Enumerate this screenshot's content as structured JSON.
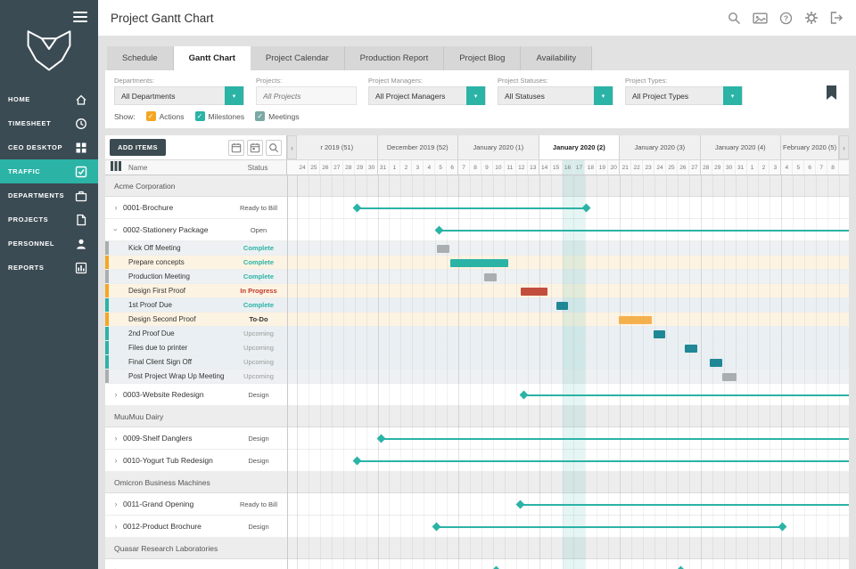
{
  "colors": {
    "sidebar_bg": "#3b4b53",
    "accent_teal": "#2bb3a6",
    "action_orange": "#f5a623",
    "meeting_gray": "#a9aeb0",
    "milestone_teal": "#1f8796",
    "inprogress_red": "#c24e3d",
    "todo_orange": "#f5b04e"
  },
  "sidebar": {
    "items": [
      {
        "id": "home",
        "label": "HOME",
        "icon": "home-icon",
        "active": false
      },
      {
        "id": "timesheet",
        "label": "TIMESHEET",
        "icon": "clock-icon",
        "active": false
      },
      {
        "id": "ceo-desktop",
        "label": "CEO DESKTOP",
        "icon": "grid-icon",
        "active": false
      },
      {
        "id": "traffic",
        "label": "TRAFFIC",
        "icon": "checkbox-icon",
        "active": true
      },
      {
        "id": "departments",
        "label": "DEPARTMENTS",
        "icon": "briefcase-icon",
        "active": false
      },
      {
        "id": "projects",
        "label": "PROJECTS",
        "icon": "document-icon",
        "active": false
      },
      {
        "id": "personnel",
        "label": "PERSONNEL",
        "icon": "person-icon",
        "active": false
      },
      {
        "id": "reports",
        "label": "REPORTS",
        "icon": "bar-chart-icon",
        "active": false
      }
    ]
  },
  "header": {
    "title": "Project Gantt Chart",
    "icons": [
      "search",
      "gallery",
      "help",
      "settings",
      "logout"
    ]
  },
  "tabs": [
    {
      "label": "Schedule",
      "active": false
    },
    {
      "label": "Gantt Chart",
      "active": true
    },
    {
      "label": "Project Calendar",
      "active": false
    },
    {
      "label": "Production Report",
      "active": false
    },
    {
      "label": "Project Blog",
      "active": false
    },
    {
      "label": "Availability",
      "active": false
    }
  ],
  "filters": {
    "departments": {
      "label": "Departments:",
      "value": "All Departments"
    },
    "projects": {
      "label": "Projects:",
      "placeholder": "All Projects"
    },
    "project_managers": {
      "label": "Project Managers:",
      "value": "All Project Managers"
    },
    "project_statuses": {
      "label": "Project Statuses:",
      "value": "All Statuses"
    },
    "project_types": {
      "label": "Project Types:",
      "value": "All Project Types"
    }
  },
  "show": {
    "label": "Show:",
    "options": [
      {
        "label": "Actions",
        "checked": true,
        "color": "#f5a623"
      },
      {
        "label": "Milestones",
        "checked": true,
        "color": "#2bb3a6"
      },
      {
        "label": "Meetings",
        "checked": true,
        "color": "#7aa9a4"
      }
    ]
  },
  "gantt": {
    "add_items": "ADD ITEMS",
    "tools": [
      "calendar",
      "calendar-day",
      "zoom"
    ],
    "columns": {
      "name": "Name",
      "status": "Status"
    },
    "weeks": [
      {
        "label": "r 2019 (51)",
        "span": 7,
        "active": false
      },
      {
        "label": "December 2019 (52)",
        "span": 7,
        "active": false
      },
      {
        "label": "January 2020 (1)",
        "span": 7,
        "active": false
      },
      {
        "label": "January 2020 (2)",
        "span": 7,
        "active": true
      },
      {
        "label": "January 2020 (3)",
        "span": 7,
        "active": false
      },
      {
        "label": "January 2020 (4)",
        "span": 7,
        "active": false
      },
      {
        "label": "February 2020 (5)",
        "span": 5,
        "active": false
      }
    ],
    "days": [
      24,
      25,
      26,
      27,
      28,
      29,
      30,
      31,
      1,
      2,
      3,
      4,
      5,
      6,
      7,
      8,
      9,
      10,
      11,
      12,
      13,
      14,
      15,
      16,
      17,
      18,
      19,
      20,
      21,
      22,
      23,
      24,
      25,
      26,
      27,
      28,
      29,
      30,
      31,
      1,
      2,
      3,
      4,
      5,
      6,
      7,
      8
    ],
    "today_columns": [
      23,
      24
    ],
    "rows": [
      {
        "type": "group",
        "name": "Acme Corporation"
      },
      {
        "type": "project",
        "name": "0001-Brochure",
        "status": "Ready to Bill",
        "status_class": "normal",
        "expanded": false,
        "bar": {
          "kind": "line",
          "start": 5.2,
          "end": 25.1,
          "color": "teal"
        }
      },
      {
        "type": "project",
        "name": "0002-Stationery Package",
        "status": "Open",
        "status_class": "normal",
        "expanded": true,
        "bar": {
          "kind": "line",
          "start": 12.3,
          "end": 47,
          "color": "teal"
        }
      },
      {
        "type": "meeting",
        "name": "Kick Off Meeting",
        "status": "Complete",
        "status_class": "complete",
        "bar": {
          "kind": "block",
          "start": 12.1,
          "end": 13.2,
          "color": "gray"
        }
      },
      {
        "type": "action",
        "name": "Prepare concepts",
        "status": "Complete",
        "status_class": "complete",
        "bar": {
          "kind": "block",
          "start": 13.3,
          "end": 18.3,
          "color": "teal"
        }
      },
      {
        "type": "meeting",
        "name": "Production Meeting",
        "status": "Complete",
        "status_class": "complete",
        "bar": {
          "kind": "block",
          "start": 16.2,
          "end": 17.3,
          "color": "gray"
        }
      },
      {
        "type": "action",
        "name": "Design First Proof",
        "status": "In Progress",
        "status_class": "progress",
        "bar": {
          "kind": "block",
          "start": 19.4,
          "end": 21.7,
          "color": "red"
        }
      },
      {
        "type": "milestone",
        "name": "1st Proof Due",
        "status": "Complete",
        "status_class": "complete",
        "bar": {
          "kind": "block",
          "start": 22.5,
          "end": 23.5,
          "color": "milestone"
        }
      },
      {
        "type": "action",
        "name": "Design Second Proof",
        "status": "To-Do",
        "status_class": "todo",
        "bar": {
          "kind": "block",
          "start": 27.9,
          "end": 30.8,
          "color": "orange"
        }
      },
      {
        "type": "milestone",
        "name": "2nd Proof Due",
        "status": "Upcoming",
        "status_class": "upcoming",
        "bar": {
          "kind": "block",
          "start": 30.9,
          "end": 31.9,
          "color": "milestone"
        }
      },
      {
        "type": "milestone",
        "name": "Files due to printer",
        "status": "Upcoming",
        "status_class": "upcoming",
        "bar": {
          "kind": "block",
          "start": 33.6,
          "end": 34.7,
          "color": "milestone"
        }
      },
      {
        "type": "milestone",
        "name": "Final Client Sign Off",
        "status": "Upcoming",
        "status_class": "upcoming",
        "bar": {
          "kind": "block",
          "start": 35.8,
          "end": 36.9,
          "color": "milestone"
        }
      },
      {
        "type": "meeting",
        "name": "Post Project Wrap Up Meeting",
        "status": "Upcoming",
        "status_class": "upcoming",
        "bar": {
          "kind": "block",
          "start": 36.9,
          "end": 38.1,
          "color": "gray"
        }
      },
      {
        "type": "project",
        "name": "0003-Website Redesign",
        "status": "Design",
        "status_class": "normal",
        "expanded": false,
        "bar": {
          "kind": "line",
          "start": 19.7,
          "end": 47,
          "color": "teal"
        }
      },
      {
        "type": "group",
        "name": "MuuMuu Dairy"
      },
      {
        "type": "project",
        "name": "0009-Shelf Danglers",
        "status": "Design",
        "status_class": "normal",
        "expanded": false,
        "bar": {
          "kind": "line",
          "start": 7.3,
          "end": 47,
          "color": "teal"
        }
      },
      {
        "type": "project",
        "name": "0010-Yogurt Tub Redesign",
        "status": "Design",
        "status_class": "normal",
        "expanded": false,
        "bar": {
          "kind": "line",
          "start": 5.2,
          "end": 47,
          "color": "teal"
        }
      },
      {
        "type": "group",
        "name": "Omicron Business Machines"
      },
      {
        "type": "project",
        "name": "0011-Grand Opening",
        "status": "Ready to Bill",
        "status_class": "normal",
        "expanded": false,
        "bar": {
          "kind": "line",
          "start": 19.4,
          "end": 47,
          "color": "teal"
        }
      },
      {
        "type": "project",
        "name": "0012-Product Brochure",
        "status": "Design",
        "status_class": "normal",
        "expanded": false,
        "bar": {
          "kind": "line",
          "start": 12.1,
          "end": 42.1,
          "color": "teal"
        }
      },
      {
        "type": "group",
        "name": "Quasar Research Laboratories"
      },
      {
        "type": "project",
        "name": "",
        "status": "",
        "status_class": "normal",
        "expanded": false,
        "bar": {
          "kind": "line",
          "start": 17.3,
          "end": 33.3,
          "color": "teal"
        }
      }
    ]
  }
}
